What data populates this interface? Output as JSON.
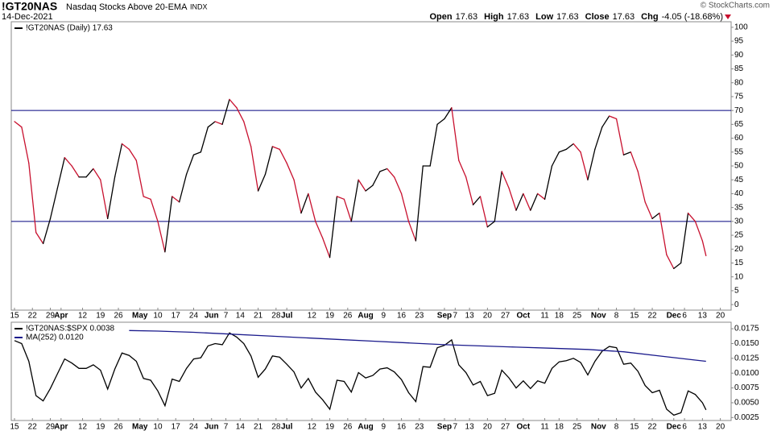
{
  "header": {
    "symbol": "!GT20NAS",
    "description": "Nasdaq Stocks Above 20-EMA",
    "exchange": "INDX",
    "date": "14-Dec-2021",
    "quote": [
      {
        "label": "Open",
        "value": 17.63
      },
      {
        "label": "High",
        "value": 17.63
      },
      {
        "label": "Low",
        "value": 17.63
      },
      {
        "label": "Close",
        "value": 17.63
      }
    ],
    "change": {
      "label": "Chg",
      "value": "-4.05 (-18.68%)"
    },
    "credit": "© StockCharts.com"
  },
  "chart_data": [
    {
      "type": "line",
      "up_color": "#000000",
      "down_color": "#c8102e",
      "reference_lines": [
        30,
        70
      ],
      "reference_color": "#00007f",
      "x": [
        0,
        2,
        4,
        6,
        8,
        10,
        12,
        14,
        16,
        18,
        20,
        22,
        24,
        26,
        28,
        30,
        32,
        34,
        36,
        38,
        40,
        42,
        44,
        46,
        48,
        50,
        52,
        54,
        56,
        58,
        60,
        62,
        64,
        66,
        68,
        70,
        72,
        74,
        76,
        78,
        80,
        82,
        84,
        86,
        88,
        90,
        92,
        94,
        96,
        98,
        100,
        102,
        104,
        106,
        108,
        110,
        112,
        114,
        116,
        118,
        120,
        122,
        124,
        126,
        128,
        130,
        132,
        134,
        136,
        138,
        140,
        142,
        144,
        146,
        148,
        150,
        152,
        154,
        156,
        158,
        160,
        162,
        164,
        166,
        168,
        170,
        172,
        174,
        176,
        178,
        180,
        182,
        184,
        186,
        188,
        190,
        192,
        193
      ],
      "series": [
        {
          "name": "!GT20NAS (Daily) 17.63",
          "color": "#000000",
          "values": [
            66,
            64,
            51,
            26,
            22,
            31,
            42,
            53,
            50,
            46,
            46,
            49,
            45,
            31,
            46,
            58,
            56,
            52,
            39,
            38,
            30,
            19,
            39,
            37,
            47,
            54,
            55,
            64,
            66,
            65,
            74,
            71,
            66,
            57,
            41,
            47,
            57,
            56,
            51,
            45,
            33,
            40,
            30,
            24,
            17,
            39,
            38,
            30,
            45,
            41,
            43,
            48,
            49,
            46,
            40,
            30,
            23,
            50,
            50,
            65,
            67,
            71,
            52,
            46,
            36,
            39,
            28,
            30,
            48,
            42,
            34,
            40,
            34,
            40,
            38,
            50,
            55,
            56,
            58,
            55,
            45,
            56,
            64,
            68,
            67,
            54,
            55,
            48,
            37,
            31,
            33,
            18,
            13,
            15,
            33,
            30,
            23,
            17.63
          ]
        }
      ],
      "xlim": [
        0,
        199
      ],
      "xticks": [
        {
          "value": 0,
          "label": "15"
        },
        {
          "value": 5,
          "label": "22"
        },
        {
          "value": 10,
          "label": "29"
        },
        {
          "value": 13,
          "label": "Apr"
        },
        {
          "value": 19,
          "label": "12"
        },
        {
          "value": 24,
          "label": "19"
        },
        {
          "value": 29,
          "label": "26"
        },
        {
          "value": 35,
          "label": "May"
        },
        {
          "value": 40,
          "label": "10"
        },
        {
          "value": 45,
          "label": "17"
        },
        {
          "value": 50,
          "label": "24"
        },
        {
          "value": 55,
          "label": "Jun"
        },
        {
          "value": 59,
          "label": "7"
        },
        {
          "value": 63,
          "label": "14"
        },
        {
          "value": 68,
          "label": "21"
        },
        {
          "value": 73,
          "label": "28"
        },
        {
          "value": 76,
          "label": "Jul"
        },
        {
          "value": 83,
          "label": "12"
        },
        {
          "value": 88,
          "label": "19"
        },
        {
          "value": 93,
          "label": "26"
        },
        {
          "value": 98,
          "label": "Aug"
        },
        {
          "value": 103,
          "label": "9"
        },
        {
          "value": 108,
          "label": "16"
        },
        {
          "value": 113,
          "label": "23"
        },
        {
          "value": 120,
          "label": "Sep"
        },
        {
          "value": 123,
          "label": "7"
        },
        {
          "value": 127,
          "label": "13"
        },
        {
          "value": 132,
          "label": "20"
        },
        {
          "value": 137,
          "label": "27"
        },
        {
          "value": 142,
          "label": "Oct"
        },
        {
          "value": 148,
          "label": "11"
        },
        {
          "value": 152,
          "label": "18"
        },
        {
          "value": 157,
          "label": "25"
        },
        {
          "value": 163,
          "label": "Nov"
        },
        {
          "value": 168,
          "label": "8"
        },
        {
          "value": 173,
          "label": "15"
        },
        {
          "value": 178,
          "label": "22"
        },
        {
          "value": 184,
          "label": "Dec"
        },
        {
          "value": 187,
          "label": "6"
        },
        {
          "value": 192,
          "label": "13"
        },
        {
          "value": 197,
          "label": "20"
        }
      ],
      "ylim": [
        -2,
        102
      ],
      "yticks": [
        0,
        5,
        10,
        15,
        20,
        25,
        30,
        35,
        40,
        45,
        50,
        55,
        60,
        65,
        70,
        75,
        80,
        85,
        90,
        95,
        100
      ]
    },
    {
      "type": "line",
      "x": [
        0,
        2,
        4,
        6,
        8,
        10,
        12,
        14,
        16,
        18,
        20,
        22,
        24,
        26,
        28,
        30,
        32,
        34,
        36,
        38,
        40,
        42,
        44,
        46,
        48,
        50,
        52,
        54,
        56,
        58,
        60,
        62,
        64,
        66,
        68,
        70,
        72,
        74,
        76,
        78,
        80,
        82,
        84,
        86,
        88,
        90,
        92,
        94,
        96,
        98,
        100,
        102,
        104,
        106,
        108,
        110,
        112,
        114,
        116,
        118,
        120,
        122,
        124,
        126,
        128,
        130,
        132,
        134,
        136,
        138,
        140,
        142,
        144,
        146,
        148,
        150,
        152,
        154,
        156,
        158,
        160,
        162,
        164,
        166,
        168,
        170,
        172,
        174,
        176,
        178,
        180,
        182,
        184,
        186,
        188,
        190,
        192,
        193
      ],
      "series": [
        {
          "name": "!GT20NAS:$SPX 0.0038",
          "color": "#000000",
          "values": [
            0.0155,
            0.015,
            0.012,
            0.0062,
            0.0053,
            0.0074,
            0.0099,
            0.0124,
            0.0117,
            0.0108,
            0.0108,
            0.0114,
            0.0105,
            0.0073,
            0.0107,
            0.0134,
            0.013,
            0.012,
            0.0091,
            0.0088,
            0.007,
            0.0045,
            0.009,
            0.0086,
            0.0108,
            0.0124,
            0.0126,
            0.0146,
            0.015,
            0.0148,
            0.0168,
            0.0161,
            0.015,
            0.0129,
            0.0093,
            0.0107,
            0.0129,
            0.0127,
            0.0115,
            0.0102,
            0.0075,
            0.0091,
            0.0068,
            0.0055,
            0.0039,
            0.0088,
            0.0086,
            0.0068,
            0.0101,
            0.0092,
            0.0096,
            0.0107,
            0.0109,
            0.0102,
            0.0089,
            0.0067,
            0.0052,
            0.0111,
            0.011,
            0.0143,
            0.0147,
            0.0156,
            0.0114,
            0.0101,
            0.008,
            0.0086,
            0.0062,
            0.0066,
            0.0105,
            0.0092,
            0.0075,
            0.0087,
            0.0074,
            0.0087,
            0.0083,
            0.0108,
            0.0119,
            0.0121,
            0.0125,
            0.0118,
            0.0097,
            0.012,
            0.0137,
            0.0145,
            0.0143,
            0.0115,
            0.0117,
            0.0103,
            0.0079,
            0.0067,
            0.0071,
            0.0039,
            0.0029,
            0.0033,
            0.007,
            0.0064,
            0.005,
            0.0038
          ]
        },
        {
          "name": "MA(252) 0.0120",
          "color": "#1a1a8c",
          "x": [
            32,
            40,
            50,
            60,
            70,
            80,
            90,
            100,
            110,
            120,
            130,
            140,
            150,
            160,
            170,
            180,
            190,
            193
          ],
          "values": [
            0.0172,
            0.0171,
            0.0169,
            0.0166,
            0.0163,
            0.016,
            0.0157,
            0.0154,
            0.0151,
            0.0148,
            0.0146,
            0.0144,
            0.0142,
            0.014,
            0.0136,
            0.0129,
            0.0122,
            0.012
          ]
        }
      ],
      "xlim": [
        0,
        199
      ],
      "xticks": [
        {
          "value": 0,
          "label": "15"
        },
        {
          "value": 5,
          "label": "22"
        },
        {
          "value": 10,
          "label": "29"
        },
        {
          "value": 13,
          "label": "Apr"
        },
        {
          "value": 19,
          "label": "12"
        },
        {
          "value": 24,
          "label": "19"
        },
        {
          "value": 29,
          "label": "26"
        },
        {
          "value": 35,
          "label": "May"
        },
        {
          "value": 40,
          "label": "10"
        },
        {
          "value": 45,
          "label": "17"
        },
        {
          "value": 50,
          "label": "24"
        },
        {
          "value": 55,
          "label": "Jun"
        },
        {
          "value": 59,
          "label": "7"
        },
        {
          "value": 63,
          "label": "14"
        },
        {
          "value": 68,
          "label": "21"
        },
        {
          "value": 73,
          "label": "28"
        },
        {
          "value": 76,
          "label": "Jul"
        },
        {
          "value": 83,
          "label": "12"
        },
        {
          "value": 88,
          "label": "19"
        },
        {
          "value": 93,
          "label": "26"
        },
        {
          "value": 98,
          "label": "Aug"
        },
        {
          "value": 103,
          "label": "9"
        },
        {
          "value": 108,
          "label": "16"
        },
        {
          "value": 113,
          "label": "23"
        },
        {
          "value": 120,
          "label": "Sep"
        },
        {
          "value": 123,
          "label": "7"
        },
        {
          "value": 127,
          "label": "13"
        },
        {
          "value": 132,
          "label": "20"
        },
        {
          "value": 137,
          "label": "27"
        },
        {
          "value": 142,
          "label": "Oct"
        },
        {
          "value": 148,
          "label": "11"
        },
        {
          "value": 152,
          "label": "18"
        },
        {
          "value": 157,
          "label": "25"
        },
        {
          "value": 163,
          "label": "Nov"
        },
        {
          "value": 168,
          "label": "8"
        },
        {
          "value": 173,
          "label": "15"
        },
        {
          "value": 178,
          "label": "22"
        },
        {
          "value": 184,
          "label": "Dec"
        },
        {
          "value": 187,
          "label": "6"
        },
        {
          "value": 192,
          "label": "13"
        },
        {
          "value": 197,
          "label": "20"
        }
      ],
      "ylim": [
        0.002,
        0.0186
      ],
      "yticks": [
        {
          "value": 0.0025,
          "label": "0.0025"
        },
        {
          "value": 0.005,
          "label": "0.0050"
        },
        {
          "value": 0.0075,
          "label": "0.0075"
        },
        {
          "value": 0.01,
          "label": "0.0100"
        },
        {
          "value": 0.0125,
          "label": "0.0125"
        },
        {
          "value": 0.015,
          "label": "0.0150"
        },
        {
          "value": 0.0175,
          "label": "0.0175"
        }
      ]
    }
  ]
}
